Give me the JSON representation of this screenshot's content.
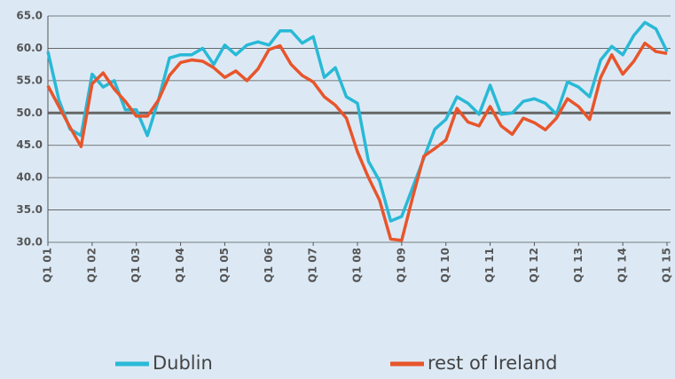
{
  "chart_data": {
    "type": "line",
    "categories": [
      "Q1 01",
      null,
      null,
      null,
      "Q1 02",
      null,
      null,
      null,
      "Q1 03",
      null,
      null,
      null,
      "Q1 04",
      null,
      null,
      null,
      "Q1 05",
      null,
      null,
      null,
      "Q1 06",
      null,
      null,
      null,
      "Q1 07",
      null,
      null,
      null,
      "Q1 08",
      null,
      null,
      null,
      "Q1 09",
      null,
      null,
      null,
      "Q1 10",
      null,
      null,
      null,
      "Q1 11",
      null,
      null,
      null,
      "Q1 12",
      null,
      null,
      null,
      "Q1 13",
      null,
      null,
      null,
      "Q1 14",
      null,
      null,
      null,
      "Q1 15"
    ],
    "series": [
      {
        "name": "Dublin",
        "color": "#29b9d6",
        "values": [
          59.5,
          52,
          47.5,
          46.5,
          56,
          54,
          55,
          50.5,
          50.5,
          46.5,
          52,
          58.5,
          59,
          59,
          60,
          57.5,
          60.5,
          59,
          60.5,
          61,
          60.5,
          62.7,
          62.7,
          60.8,
          61.8,
          55.5,
          57,
          52.5,
          51.5,
          42.5,
          39.5,
          33.3,
          34,
          38.5,
          43,
          47.5,
          49,
          52.5,
          51.5,
          49.8,
          54.3,
          49.8,
          50,
          51.8,
          52.2,
          51.5,
          49.8,
          54.8,
          54,
          52.5,
          58.2,
          60.3,
          59,
          62,
          64,
          63,
          59.5
        ]
      },
      {
        "name": "rest of Ireland",
        "color": "#e8552b",
        "values": [
          54.2,
          51,
          47.8,
          44.8,
          54.5,
          56.2,
          53.7,
          51.8,
          49.5,
          49.5,
          52,
          55.8,
          57.8,
          58.2,
          58,
          57,
          55.5,
          56.5,
          55,
          56.8,
          59.8,
          60.4,
          57.5,
          55.8,
          54.8,
          52.5,
          51.2,
          49.2,
          44,
          40,
          36.5,
          30.5,
          30.3,
          37,
          43.3,
          44.5,
          45.8,
          50.7,
          48.6,
          48,
          51,
          48,
          46.7,
          49.2,
          48.5,
          47.4,
          49.2,
          52.2,
          51,
          49,
          55.5,
          59,
          56,
          58,
          60.8,
          59.5,
          59.2
        ]
      }
    ],
    "ylim": [
      30,
      65
    ],
    "yticks": [
      {
        "value": 30,
        "label": "30.0"
      },
      {
        "value": 35,
        "label": "35.0"
      },
      {
        "value": 40,
        "label": "40.0"
      },
      {
        "value": 45,
        "label": "45.0"
      },
      {
        "value": 50,
        "label": "50.0"
      },
      {
        "value": 55,
        "label": "55.0"
      },
      {
        "value": 60,
        "label": "60.0"
      },
      {
        "value": 65,
        "label": "65.0"
      }
    ],
    "grid": true,
    "baseline": 50,
    "legend": "bottom"
  }
}
